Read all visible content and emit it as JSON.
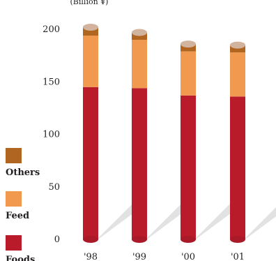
{
  "chart_data": {
    "type": "bar",
    "stacked": true,
    "unit_label": "(Billion ¥)",
    "categories": [
      "'98",
      "'99",
      "'00",
      "'01"
    ],
    "series": [
      {
        "name": "Foods",
        "values": [
          145,
          144,
          137,
          136
        ],
        "color": "#b91b2b"
      },
      {
        "name": "Feed",
        "values": [
          49,
          46,
          42,
          42
        ],
        "color": "#f19a4f"
      },
      {
        "name": "Others",
        "values": [
          8,
          7,
          7,
          7
        ],
        "color": "#b06521"
      }
    ],
    "cap_color": "#d2b49e",
    "shadow_color": "#e2e2e2",
    "ylim": [
      0,
      200
    ],
    "yticks": [
      0,
      50,
      100,
      150,
      200
    ],
    "grid": false,
    "legend_position": "left"
  }
}
